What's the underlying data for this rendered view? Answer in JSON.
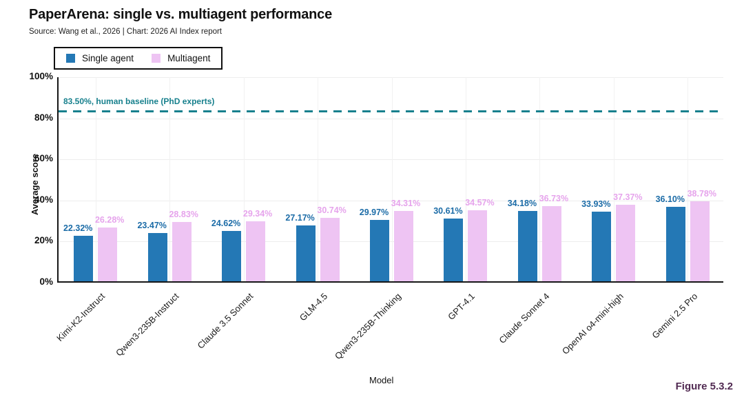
{
  "header": {
    "title": "PaperArena: single vs. multiagent performance",
    "source": "Source: Wang et al., 2026 | Chart: 2026 AI Index report"
  },
  "legend": {
    "items": [
      {
        "label": "Single agent",
        "color": "#2478b5"
      },
      {
        "label": "Multiagent",
        "color": "#eec4f3"
      }
    ]
  },
  "chart_data": {
    "type": "bar",
    "title": "PaperArena: single vs. multiagent performance",
    "categories": [
      "Kimi-K2-Instruct",
      "Qwen3-235B-Instruct",
      "Claude 3.5 Sonnet",
      "GLM-4.5",
      "Qwen3-235B-Thinking",
      "GPT-4.1",
      "Claude Sonnet 4",
      "OpenAI o4-mini-high",
      "Gemini 2.5 Pro"
    ],
    "series": [
      {
        "name": "Single agent",
        "color": "#2478b5",
        "label_color": "#1c6ca7",
        "values": [
          22.32,
          23.47,
          24.62,
          27.17,
          29.97,
          30.61,
          34.18,
          33.93,
          36.1
        ],
        "value_labels": [
          "22.32%",
          "23.47%",
          "24.62%",
          "27.17%",
          "29.97%",
          "30.61%",
          "34.18%",
          "33.93%",
          "36.10%"
        ]
      },
      {
        "name": "Multiagent",
        "color": "#eec4f3",
        "label_color": "#e6a4ec",
        "values": [
          26.28,
          28.83,
          29.34,
          30.74,
          34.31,
          34.57,
          36.73,
          37.37,
          38.78
        ],
        "value_labels": [
          "26.28%",
          "28.83%",
          "29.34%",
          "30.74%",
          "34.31%",
          "34.57%",
          "36.73%",
          "37.37%",
          "38.78%"
        ]
      }
    ],
    "xlabel": "Model",
    "ylabel": "Average score",
    "ylim": [
      0,
      100
    ],
    "yticks": [
      0,
      20,
      40,
      60,
      80,
      100
    ],
    "ytick_labels": [
      "0%",
      "20%",
      "40%",
      "60%",
      "80%",
      "100%"
    ],
    "grid": true,
    "legend_position": "top-left",
    "baseline": {
      "value": 83.5,
      "label": "83.50%, human baseline (PhD experts)",
      "color": "#17808d"
    }
  },
  "footer": {
    "figure_label": "Figure 5.3.2",
    "figure_color": "#512a52"
  }
}
